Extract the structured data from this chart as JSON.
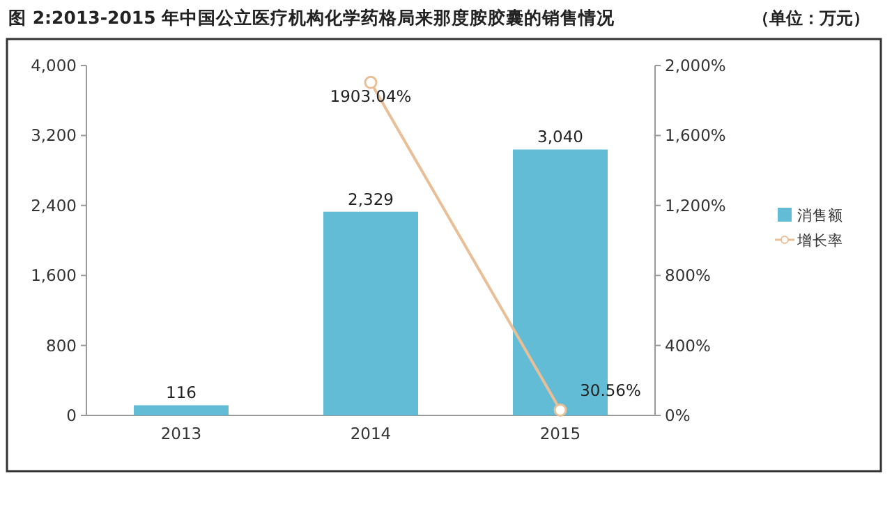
{
  "chart_data": {
    "type": "bar",
    "title": "图 2:2013-2015 年中国公立医疗机构化学药格局来那度胺胶囊的销售情况",
    "subtitle": "（单位：万元）",
    "categories": [
      "2013",
      "2014",
      "2015"
    ],
    "series": [
      {
        "name": "消售额",
        "color": "#62bcd6",
        "values": [
          116,
          2329,
          3040
        ],
        "value_labels": [
          "116",
          "2,329",
          "3,040"
        ]
      },
      {
        "name": "增长率",
        "type": "line",
        "axis": "y2",
        "color": "#e9bf98",
        "values": [
          null,
          1903.04,
          30.56
        ],
        "value_labels": [
          null,
          "1903.04%",
          "30.56%"
        ]
      }
    ],
    "ylim": [
      0,
      4000
    ],
    "yticks": [
      0,
      800,
      {
        "value": 1600,
        "label": "1,600"
      },
      {
        "value": 2400,
        "label": "2,400"
      },
      {
        "value": 3200,
        "label": "3,200"
      },
      {
        "value": 4000,
        "label": "4,000"
      }
    ],
    "y2lim": [
      0,
      2000
    ],
    "y2ticks": [
      {
        "value": 0,
        "label": "0%"
      },
      {
        "value": 400,
        "label": "400%"
      },
      {
        "value": 800,
        "label": "800%"
      },
      {
        "value": 1200,
        "label": "1,200%"
      },
      {
        "value": 1600,
        "label": "1,600%"
      },
      {
        "value": 2000,
        "label": "2,000%"
      }
    ],
    "legend": "right",
    "marker": "circle"
  }
}
